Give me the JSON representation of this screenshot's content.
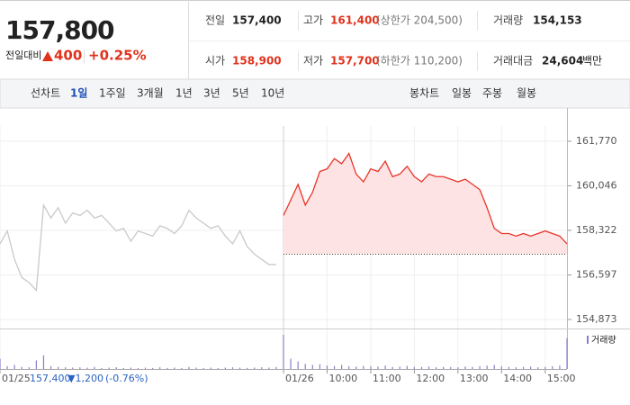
{
  "header": {
    "price": "157,800",
    "change_label": "전일대비",
    "change": "400",
    "change_pct": "+0.25%",
    "stats": [
      {
        "label": "전일",
        "value": "157,400"
      },
      {
        "label": "고가",
        "value": "161,400",
        "note": "(상한가 204,500)"
      },
      {
        "label": "거래량",
        "value": "154,153"
      },
      {
        "label": "시가",
        "value": "158,900"
      },
      {
        "label": "저가",
        "value": "157,700",
        "note": "(하한가 110,200)"
      },
      {
        "label": "거래대금",
        "value": "24,604",
        "unit": "백만"
      }
    ]
  },
  "tabs": {
    "line_label": "선차트",
    "line_periods": [
      "1일",
      "1주일",
      "3개월",
      "1년",
      "3년",
      "5년",
      "10년"
    ],
    "candle_label": "봉차트",
    "candle_periods": [
      "일봉",
      "주봉",
      "월봉"
    ]
  },
  "chart_data": {
    "type": "line",
    "xlim": [
      0,
      780
    ],
    "xticks": [
      {
        "value": 0,
        "label": "01/25"
      },
      {
        "value": 390,
        "label": "01/26"
      },
      {
        "value": 450,
        "label": "10:00"
      },
      {
        "value": 510,
        "label": "11:00"
      },
      {
        "value": 570,
        "label": "12:00"
      },
      {
        "value": 630,
        "label": "13:00"
      },
      {
        "value": 690,
        "label": "14:00"
      },
      {
        "value": 750,
        "label": "15:00"
      }
    ],
    "ylim": [
      154525,
      162360
    ],
    "yticks": [
      {
        "value": 161770,
        "label": "161,770"
      },
      {
        "value": 160046,
        "label": "160,046"
      },
      {
        "value": 158322,
        "label": "158,322"
      },
      {
        "value": 156597,
        "label": "156,597"
      },
      {
        "value": 154873,
        "label": "154,873"
      }
    ],
    "prev_close": 157400,
    "fill_color": "#fde3e3",
    "series": [
      {
        "color": "#c9c9c9",
        "x": [
          0,
          10,
          20,
          30,
          40,
          50,
          60,
          70,
          80,
          90,
          100,
          110,
          120,
          130,
          140,
          150,
          160,
          170,
          180,
          190,
          200,
          210,
          220,
          230,
          240,
          250,
          260,
          270,
          280,
          290,
          300,
          310,
          320,
          330,
          340,
          350,
          360,
          370,
          380
        ],
        "values": [
          157800,
          158300,
          157200,
          156500,
          156300,
          156000,
          159300,
          158800,
          159200,
          158600,
          159000,
          158900,
          159100,
          158800,
          158900,
          158600,
          158300,
          158400,
          157900,
          158300,
          158200,
          158100,
          158500,
          158400,
          158200,
          158500,
          159100,
          158800,
          158600,
          158400,
          158500,
          158100,
          157800,
          158300,
          157700,
          157400,
          157200,
          157000,
          157000
        ],
        "volume": [
          30,
          8,
          12,
          6,
          5,
          25,
          40,
          8,
          6,
          5,
          4,
          5,
          4,
          6,
          3,
          4,
          5,
          3,
          4,
          3,
          4,
          3,
          5,
          3,
          4,
          3,
          6,
          4,
          3,
          4,
          3,
          4,
          5,
          4,
          3,
          4,
          5,
          4,
          6
        ]
      },
      {
        "color": "#e8362a",
        "x": [
          390,
          400,
          410,
          420,
          430,
          440,
          450,
          460,
          470,
          480,
          490,
          500,
          510,
          520,
          530,
          540,
          550,
          560,
          570,
          580,
          590,
          600,
          610,
          620,
          630,
          640,
          650,
          660,
          670,
          680,
          690,
          700,
          710,
          720,
          730,
          740,
          750,
          760,
          770,
          780
        ],
        "values": [
          158900,
          159500,
          160100,
          159300,
          159800,
          160600,
          160700,
          161100,
          160900,
          161300,
          160500,
          160200,
          160700,
          160600,
          161000,
          160400,
          160500,
          160800,
          160400,
          160200,
          160500,
          160400,
          160400,
          160300,
          160200,
          160300,
          160100,
          159900,
          159200,
          158400,
          158200,
          158200,
          158100,
          158200,
          158100,
          158200,
          158300,
          158200,
          158100,
          157800
        ],
        "volume": [
          100,
          30,
          22,
          15,
          12,
          14,
          10,
          9,
          12,
          8,
          7,
          9,
          8,
          7,
          10,
          6,
          7,
          9,
          6,
          6,
          7,
          5,
          6,
          6,
          5,
          7,
          6,
          8,
          10,
          12,
          8,
          6,
          5,
          6,
          7,
          5,
          6,
          8,
          10,
          90
        ]
      }
    ],
    "volume_label": "거래량",
    "volume_color": "#8c7fc8",
    "volume_lim": [
      0,
      100
    ],
    "prev_summary": {
      "close": "157,400",
      "change": "▼1,200",
      "pct": "(-0.76%)"
    }
  }
}
